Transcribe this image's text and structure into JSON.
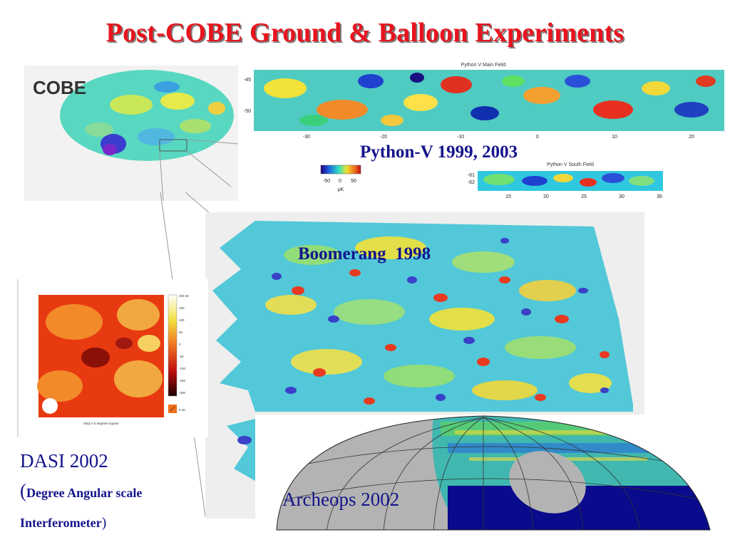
{
  "title": "Post-COBE Ground & Balloon Experiments",
  "cobe": {
    "logo": "COBE"
  },
  "python": {
    "label": "Python-V 1999, 2003",
    "main_title": "Python V Main Field",
    "south_title": "Python V South Field",
    "main_y_ticks": [
      "-45",
      "-50"
    ],
    "main_x_ticks": [
      "-30",
      "-20",
      "-10",
      "0",
      "10",
      "20"
    ],
    "south_y_ticks": [
      "-61",
      "-62"
    ],
    "south_x_ticks": [
      "15",
      "20",
      "25",
      "30",
      "35"
    ],
    "colorbar_ticks": [
      "-50",
      "0",
      "50"
    ],
    "colorbar_unit": "μK"
  },
  "boomerang": {
    "label": "Boomerang  1998"
  },
  "dasi": {
    "label": "DASI 2002",
    "paren_open": "(",
    "desc_line1": "Degree Angular scale",
    "desc_line2": "Interferometer",
    "paren_close": ")",
    "scale_ticks": [
      "200 uK",
      "150",
      "100",
      "50",
      "0",
      "-50",
      "-100",
      "-150",
      "-200"
    ],
    "legend_key": "5 uK",
    "caption": "Map is 5 degrees square"
  },
  "archeops": {
    "label": "Archeops 2002"
  }
}
